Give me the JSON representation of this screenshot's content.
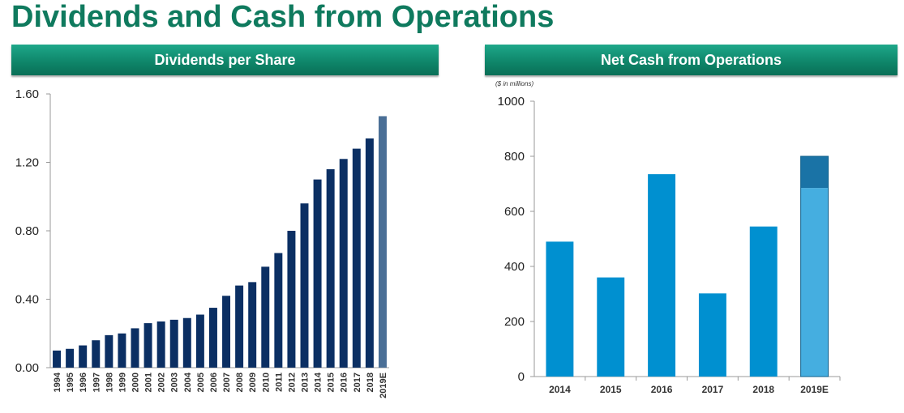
{
  "title": "Dividends and Cash from Operations",
  "colors": {
    "title": "#0f7a5e",
    "banner": "#0e8468",
    "dividend_bar": "#0b2f63",
    "dividend_estimate_bar": "#4a6f96",
    "cash_bar": "#0090d0",
    "cash_estimate_bar": "#45aee0",
    "cash_estimate_top": "#1a73a6"
  },
  "chart_data": [
    {
      "type": "bar",
      "title": "Dividends per Share",
      "categories": [
        "1994",
        "1995",
        "1996",
        "1997",
        "1998",
        "1999",
        "2000",
        "2001",
        "2002",
        "2003",
        "2004",
        "2005",
        "2006",
        "2007",
        "2008",
        "2009",
        "2010",
        "2011",
        "2012",
        "2013",
        "2014",
        "2015",
        "2016",
        "2017",
        "2018",
        "2019E"
      ],
      "values": [
        0.1,
        0.11,
        0.13,
        0.16,
        0.19,
        0.2,
        0.23,
        0.26,
        0.27,
        0.28,
        0.29,
        0.31,
        0.35,
        0.42,
        0.48,
        0.5,
        0.59,
        0.67,
        0.8,
        0.96,
        1.1,
        1.16,
        1.22,
        1.28,
        1.34,
        1.47
      ],
      "estimate_category": "2019E",
      "yticks": [
        "0.00",
        "0.40",
        "0.80",
        "1.20",
        "1.60"
      ],
      "ylim": [
        0,
        1.6
      ],
      "grid": false
    },
    {
      "type": "bar",
      "title": "Net Cash from Operations",
      "note": "($ in millions)",
      "categories": [
        "2014",
        "2015",
        "2016",
        "2017",
        "2018",
        "2019E"
      ],
      "values": [
        490,
        360,
        735,
        302,
        545,
        685
      ],
      "estimate_range": {
        "category": "2019E",
        "low": 685,
        "high": 800
      },
      "yticks": [
        "0",
        "200",
        "400",
        "600",
        "800",
        "1000"
      ],
      "ylim": [
        0,
        1000
      ],
      "grid": false
    }
  ]
}
